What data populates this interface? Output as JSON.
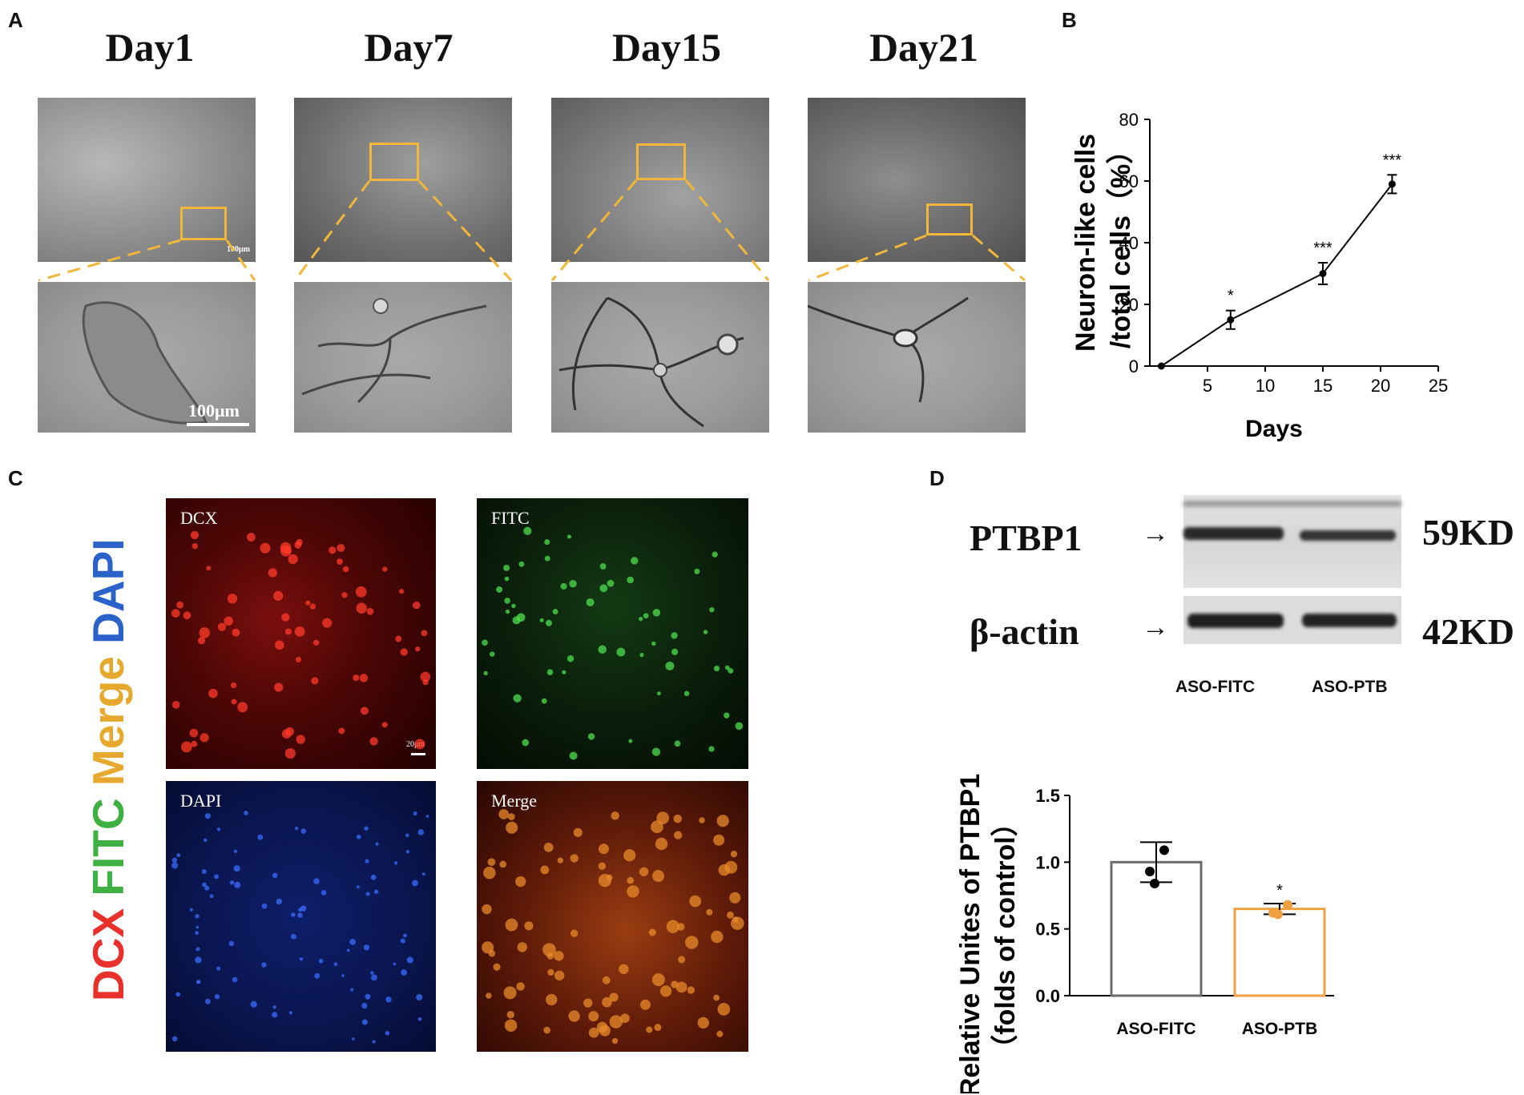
{
  "panels": {
    "A": "A",
    "B": "B",
    "C": "C",
    "D": "D"
  },
  "panelA": {
    "days": [
      "Day1",
      "Day7",
      "Day15",
      "Day21"
    ],
    "scale_small": "100μm",
    "scale_large": "100μm"
  },
  "panelC": {
    "vertical_legend": [
      {
        "text": "DCX",
        "color": "#e8312a"
      },
      {
        "text": "FITC",
        "color": "#3fb042"
      },
      {
        "text": "Merge",
        "color": "#e6a92e"
      },
      {
        "text": "DAPI",
        "color": "#2a62c9"
      }
    ],
    "images": [
      "DCX",
      "FITC",
      "DAPI",
      "Merge"
    ],
    "scale": "20μm"
  },
  "panelD": {
    "bands": [
      "PTBP1",
      "β-actin"
    ],
    "sizes": [
      "59KD",
      "42KD"
    ],
    "lanes": [
      "ASO-FITC",
      "ASO-PTB"
    ]
  },
  "chart_data": [
    {
      "type": "line",
      "xlabel": "Days",
      "ylabel_line1": "Neuron-like cells",
      "ylabel_line2": "/total cells（%）",
      "xlim": [
        0,
        25
      ],
      "ylim": [
        0,
        80
      ],
      "xticks": [
        5,
        10,
        15,
        20,
        25
      ],
      "yticks": [
        0,
        20,
        40,
        60,
        80
      ],
      "x": [
        1,
        7,
        15,
        21
      ],
      "y": [
        0,
        15,
        30,
        59
      ],
      "error": [
        0,
        3,
        3.5,
        3
      ],
      "annotations": [
        "",
        "*",
        "***",
        "***"
      ]
    },
    {
      "type": "bar",
      "categories": [
        "ASO-FITC",
        "ASO-PTB"
      ],
      "values": [
        1.0,
        0.65
      ],
      "error": [
        0.15,
        0.04
      ],
      "points": [
        [
          0.93,
          1.09,
          0.84
        ],
        [
          0.62,
          0.68,
          0.61
        ]
      ],
      "colors": [
        "#6b6b6b",
        "#f0a040"
      ],
      "ylabel_line1": "Relative Unites of PTBP1",
      "ylabel_line2": "（folds of control）",
      "ylim": [
        0,
        1.5
      ],
      "yticks": [
        "0.0",
        "0.5",
        "1.0",
        "1.5"
      ],
      "annotations": [
        "",
        "*"
      ]
    }
  ]
}
